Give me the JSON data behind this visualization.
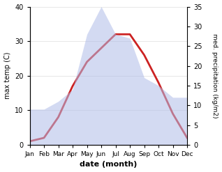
{
  "months": [
    "Jan",
    "Feb",
    "Mar",
    "Apr",
    "May",
    "Jun",
    "Jul",
    "Aug",
    "Sep",
    "Oct",
    "Nov",
    "Dec"
  ],
  "temp": [
    1,
    2,
    8,
    17,
    24,
    28,
    32,
    32,
    26,
    18,
    9,
    2
  ],
  "precip": [
    9,
    9,
    11,
    14,
    28,
    35,
    28,
    27,
    17,
    15,
    12,
    12
  ],
  "temp_ylim": [
    0,
    40
  ],
  "precip_ylim": [
    0,
    35
  ],
  "temp_color": "#cc2222",
  "precip_fill_color": "#b0bce8",
  "ylabel_left": "max temp (C)",
  "ylabel_right": "med. precipitation (kg/m2)",
  "xlabel": "date (month)",
  "bg_color": "#ffffff",
  "temp_linewidth": 2.0,
  "precip_alpha": 0.55,
  "yticks_left": [
    0,
    10,
    20,
    30,
    40
  ],
  "yticks_right": [
    0,
    5,
    10,
    15,
    20,
    25,
    30,
    35
  ]
}
